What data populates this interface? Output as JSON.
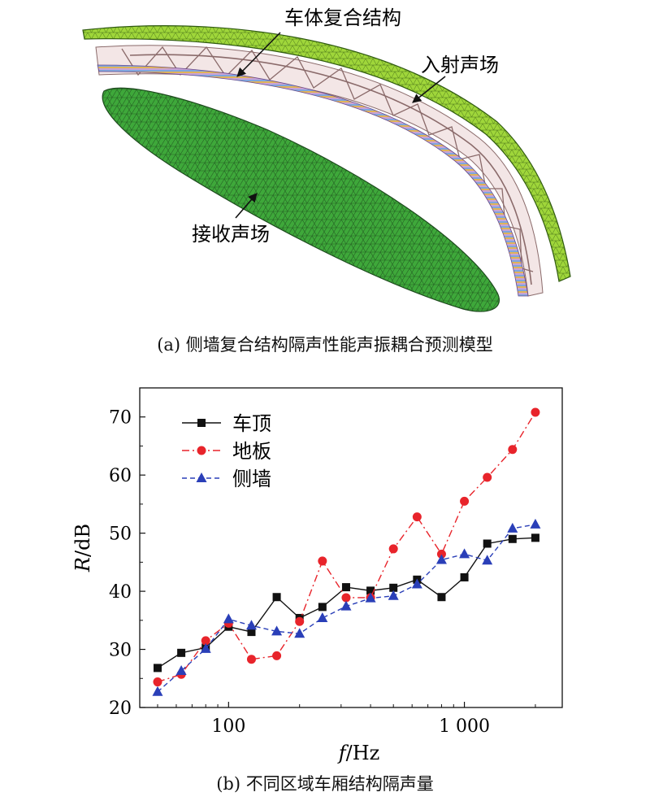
{
  "figure_a": {
    "caption": "(a) 侧墙复合结构隔声性能声振耦合预测模型",
    "labels": {
      "structure": "车体复合结构",
      "incident": "入射声场",
      "receiving": "接收声场"
    },
    "colors": {
      "incident_field": "#9fd63a",
      "receiving_field": "#3ea83a",
      "mesh_line": "#1d4a1d",
      "structure_frame": "#e9d3d3"
    }
  },
  "figure_b": {
    "caption": "(b) 不同区域车厢结构隔声量"
  },
  "chart_data": {
    "type": "line",
    "x_scale": "log",
    "xlabel_italic": "f",
    "xlabel_rest": "/Hz",
    "ylabel_italic": "R",
    "ylabel_rest": "/dB",
    "xlim": [
      42,
      2600
    ],
    "ylim": [
      20,
      75
    ],
    "x_ticks": [
      100,
      1000
    ],
    "x_tick_labels": [
      "100",
      "1 000"
    ],
    "y_ticks": [
      20,
      30,
      40,
      50,
      60,
      70
    ],
    "y_tick_labels": [
      "20",
      "30",
      "40",
      "50",
      "60",
      "70"
    ],
    "legend_position": "top-left",
    "grid": false,
    "x": [
      50,
      63,
      80,
      100,
      125,
      160,
      200,
      250,
      315,
      400,
      500,
      630,
      800,
      1000,
      1250,
      1600,
      2000
    ],
    "series": [
      {
        "name": "车顶",
        "color": "#111111",
        "dash": "solid",
        "marker": "square",
        "values": [
          26.8,
          29.4,
          30.3,
          33.9,
          33.0,
          39.0,
          35.4,
          37.3,
          40.7,
          40.1,
          40.6,
          42.0,
          39.0,
          42.4,
          48.2,
          49.0,
          49.2
        ]
      },
      {
        "name": "地板",
        "color": "#e8242b",
        "dash": "dashdot",
        "marker": "circle",
        "values": [
          24.4,
          25.7,
          31.5,
          34.5,
          28.3,
          28.9,
          34.8,
          45.2,
          38.9,
          38.9,
          47.3,
          52.8,
          46.4,
          55.5,
          59.6,
          64.4,
          70.8
        ]
      },
      {
        "name": "侧墙",
        "color": "#2a3fb8",
        "dash": "dashed",
        "marker": "triangle",
        "values": [
          22.7,
          26.3,
          30.1,
          35.2,
          34.1,
          33.1,
          32.7,
          35.4,
          37.4,
          38.8,
          39.2,
          41.2,
          45.4,
          46.4,
          45.3,
          50.8,
          51.5
        ]
      }
    ]
  }
}
